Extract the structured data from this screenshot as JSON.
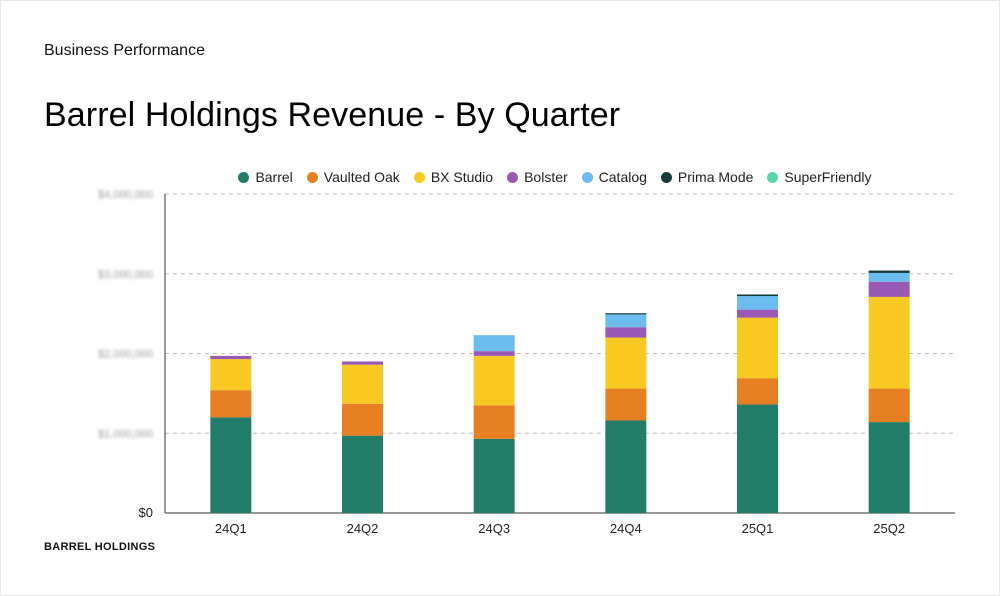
{
  "header": {
    "section_label": "Business Performance",
    "title": "Barrel Holdings Revenue - By Quarter"
  },
  "footer": {
    "brand": "BARREL HOLDINGS"
  },
  "chart_data": {
    "type": "bar",
    "stacked": true,
    "title": "Barrel Holdings Revenue - By Quarter",
    "categories": [
      "24Q1",
      "24Q2",
      "24Q3",
      "24Q4",
      "25Q1",
      "25Q2"
    ],
    "y_ticks": [
      "$0",
      "$1,000,000",
      "$2,000,000",
      "$3,000,000",
      "$4,000,000"
    ],
    "ylim": [
      0,
      4000000
    ],
    "grid": true,
    "legend_position": "top",
    "series": [
      {
        "name": "Barrel",
        "color": "#217d6a",
        "values": [
          1200000,
          970000,
          930000,
          1160000,
          1360000,
          1140000
        ]
      },
      {
        "name": "Vaulted Oak",
        "color": "#e67e22",
        "values": [
          340000,
          400000,
          420000,
          400000,
          330000,
          420000
        ]
      },
      {
        "name": "BX Studio",
        "color": "#f9c923",
        "values": [
          390000,
          490000,
          620000,
          640000,
          760000,
          1150000
        ]
      },
      {
        "name": "Bolster",
        "color": "#9b59b6",
        "values": [
          40000,
          40000,
          60000,
          130000,
          100000,
          190000
        ]
      },
      {
        "name": "Catalog",
        "color": "#6bbcef",
        "values": [
          0,
          0,
          200000,
          160000,
          170000,
          110000
        ]
      },
      {
        "name": "Prima Mode",
        "color": "#123b3a",
        "values": [
          0,
          0,
          0,
          15000,
          20000,
          30000
        ]
      },
      {
        "name": "SuperFriendly",
        "color": "#57d6ad",
        "values": [
          0,
          0,
          0,
          0,
          0,
          0
        ]
      }
    ]
  }
}
